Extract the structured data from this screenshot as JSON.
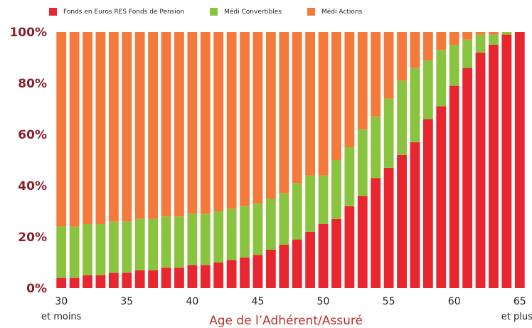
{
  "chart_data": {
    "type": "bar",
    "stacked": true,
    "xlabel": "Age de l’Adhérent/Assuré",
    "ylabel": "",
    "ylim": [
      0,
      100
    ],
    "y_ticks": [
      "0%",
      "20%",
      "40%",
      "60%",
      "80%",
      "100%"
    ],
    "x_ticks": [
      "30",
      "35",
      "40",
      "45",
      "50",
      "55",
      "60",
      "65"
    ],
    "x_notes": {
      "start": "et moins",
      "end": "et plus"
    },
    "legend_position": "top",
    "grid": false,
    "categories": [
      "30",
      "31",
      "32",
      "33",
      "34",
      "35",
      "36",
      "37",
      "38",
      "39",
      "40",
      "41",
      "42",
      "43",
      "44",
      "45",
      "46",
      "47",
      "48",
      "49",
      "50",
      "51",
      "52",
      "53",
      "54",
      "55",
      "56",
      "57",
      "58",
      "59",
      "60",
      "61",
      "62",
      "63",
      "64",
      "65"
    ],
    "series": [
      {
        "name": "Fonds en Euros RES Fonds de Pension",
        "color": "#e8262f",
        "values": [
          4,
          4,
          5,
          5,
          6,
          6,
          7,
          7,
          8,
          8,
          9,
          9,
          10,
          11,
          12,
          13,
          15,
          17,
          19,
          22,
          25,
          27,
          32,
          36,
          43,
          47,
          52,
          57,
          66,
          71,
          79,
          86,
          92,
          95,
          99,
          100
        ]
      },
      {
        "name": "Médi Convertibles",
        "color": "#8ac43f",
        "values": [
          20,
          20,
          20,
          20,
          20,
          20,
          20,
          20,
          20,
          20,
          20,
          20,
          20,
          20,
          20,
          20,
          20,
          20,
          22,
          22,
          19,
          23,
          23,
          26,
          24,
          27,
          29,
          29,
          23,
          22,
          16,
          11,
          7,
          4,
          1,
          0
        ]
      },
      {
        "name": "Médi Actions",
        "color": "#f47a3c",
        "values": [
          76,
          76,
          75,
          75,
          74,
          74,
          73,
          73,
          72,
          72,
          71,
          71,
          70,
          69,
          68,
          67,
          65,
          63,
          59,
          56,
          56,
          50,
          45,
          38,
          33,
          26,
          19,
          14,
          11,
          7,
          5,
          3,
          1,
          1,
          0,
          0
        ]
      }
    ]
  }
}
